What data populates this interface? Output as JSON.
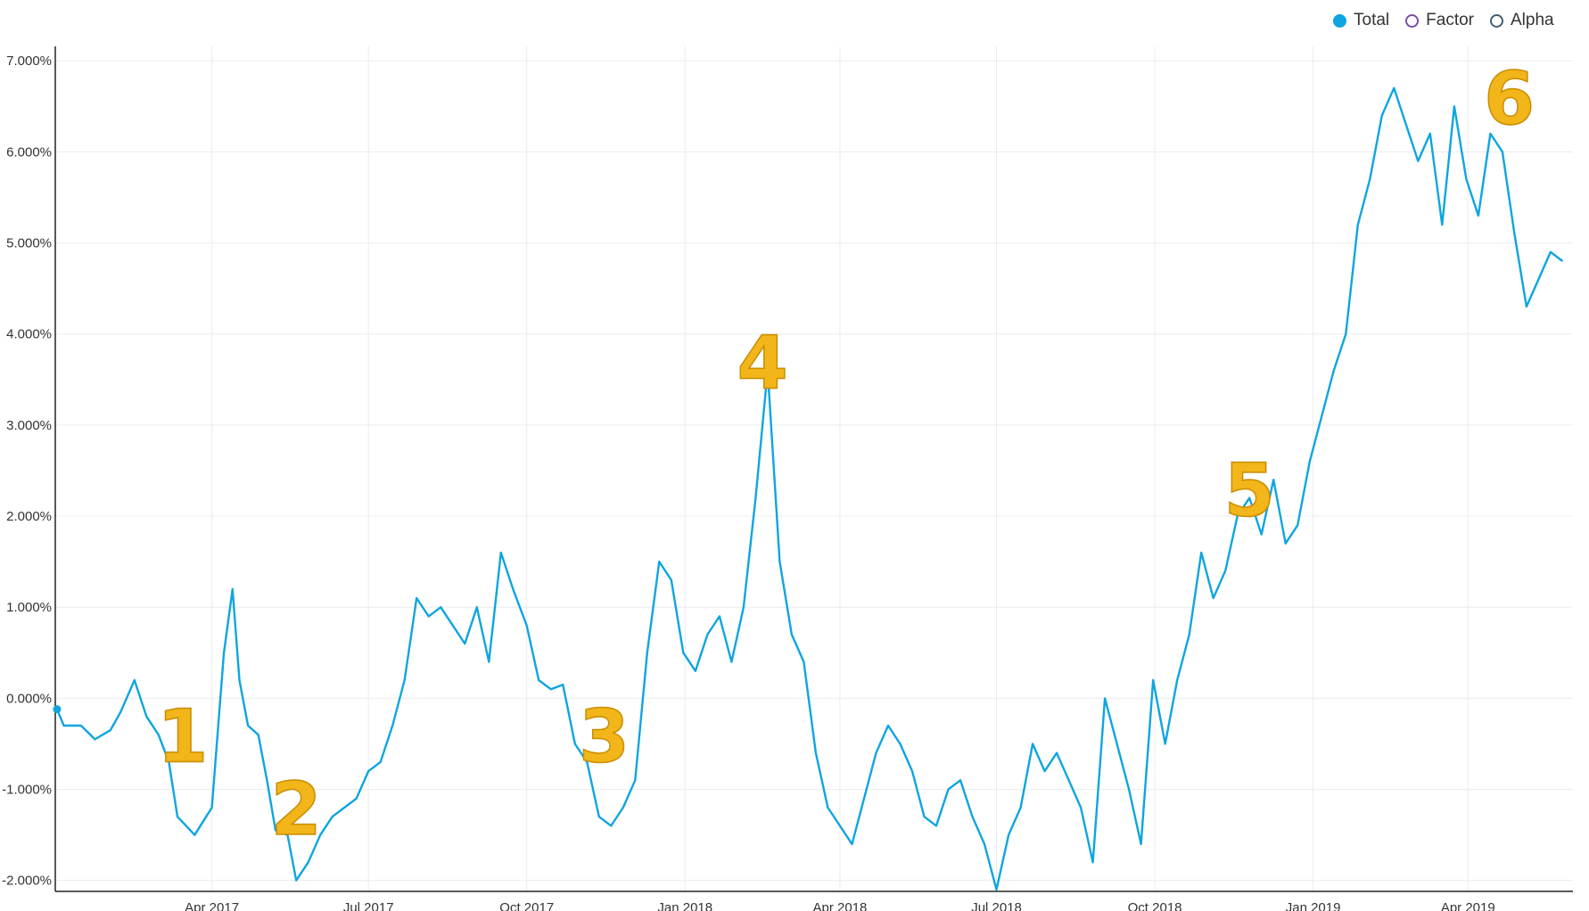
{
  "legend": {
    "items": [
      {
        "label": "Total",
        "color": "#0EA5E0",
        "filled": true
      },
      {
        "label": "Factor",
        "color": "#7B4FA6",
        "filled": false
      },
      {
        "label": "Alpha",
        "color": "#3F5E77",
        "filled": false
      }
    ]
  },
  "chart_data": {
    "type": "line",
    "title": "",
    "xlabel": "",
    "ylabel": "",
    "ylim": [
      -2.0,
      7.0
    ],
    "x_ticks": [
      "Apr 2017",
      "Jul 2017",
      "Oct 2017",
      "Jan 2018",
      "Apr 2018",
      "Jul 2018",
      "Oct 2018",
      "Jan 2019",
      "Apr 2019"
    ],
    "y_ticks": [
      "-2.000%",
      "-1.000%",
      "0.000%",
      "1.000%",
      "2.000%",
      "3.000%",
      "4.000%",
      "5.000%",
      "6.000%",
      "7.000%"
    ],
    "grid": true,
    "legend_position": "top-right",
    "annotations": [
      {
        "text": "1",
        "x": "2017-03-15",
        "y": -0.4
      },
      {
        "text": "2",
        "x": "2017-05-20",
        "y": -1.2
      },
      {
        "text": "3",
        "x": "2017-11-15",
        "y": -0.4
      },
      {
        "text": "4",
        "x": "2018-02-15",
        "y": 3.7
      },
      {
        "text": "5",
        "x": "2018-11-25",
        "y": 2.3
      },
      {
        "text": "6",
        "x": "2019-04-25",
        "y": 6.6
      }
    ],
    "series": [
      {
        "name": "Total",
        "color": "#0EA5E0",
        "x": [
          "2017-01-01",
          "2017-01-05",
          "2017-01-15",
          "2017-01-23",
          "2017-02-01",
          "2017-02-07",
          "2017-02-15",
          "2017-02-22",
          "2017-03-01",
          "2017-03-07",
          "2017-03-12",
          "2017-03-17",
          "2017-03-22",
          "2017-03-27",
          "2017-04-01",
          "2017-04-08",
          "2017-04-13",
          "2017-04-17",
          "2017-04-22",
          "2017-04-28",
          "2017-05-03",
          "2017-05-08",
          "2017-05-15",
          "2017-05-20",
          "2017-05-27",
          "2017-06-03",
          "2017-06-10",
          "2017-06-17",
          "2017-06-24",
          "2017-07-01",
          "2017-07-08",
          "2017-07-15",
          "2017-07-22",
          "2017-07-29",
          "2017-08-05",
          "2017-08-12",
          "2017-08-19",
          "2017-08-26",
          "2017-09-02",
          "2017-09-09",
          "2017-09-16",
          "2017-09-23",
          "2017-10-01",
          "2017-10-08",
          "2017-10-15",
          "2017-10-22",
          "2017-10-29",
          "2017-11-05",
          "2017-11-12",
          "2017-11-19",
          "2017-11-26",
          "2017-12-03",
          "2017-12-10",
          "2017-12-17",
          "2017-12-24",
          "2017-12-31",
          "2018-01-07",
          "2018-01-14",
          "2018-01-21",
          "2018-01-28",
          "2018-02-04",
          "2018-02-11",
          "2018-02-18",
          "2018-02-25",
          "2018-03-04",
          "2018-03-11",
          "2018-03-18",
          "2018-03-25",
          "2018-04-01",
          "2018-04-08",
          "2018-04-15",
          "2018-04-22",
          "2018-04-29",
          "2018-05-06",
          "2018-05-13",
          "2018-05-20",
          "2018-05-27",
          "2018-06-03",
          "2018-06-10",
          "2018-06-17",
          "2018-06-24",
          "2018-07-01",
          "2018-07-08",
          "2018-07-15",
          "2018-07-22",
          "2018-07-29",
          "2018-08-05",
          "2018-08-12",
          "2018-08-19",
          "2018-08-26",
          "2018-09-02",
          "2018-09-09",
          "2018-09-16",
          "2018-09-23",
          "2018-09-30",
          "2018-10-07",
          "2018-10-14",
          "2018-10-21",
          "2018-10-28",
          "2018-11-04",
          "2018-11-11",
          "2018-11-18",
          "2018-11-25",
          "2018-12-02",
          "2018-12-09",
          "2018-12-16",
          "2018-12-23",
          "2018-12-30",
          "2019-01-06",
          "2019-01-13",
          "2019-01-20",
          "2019-01-27",
          "2019-02-03",
          "2019-02-10",
          "2019-02-17",
          "2019-02-24",
          "2019-03-03",
          "2019-03-10",
          "2019-03-17",
          "2019-03-24",
          "2019-03-31",
          "2019-04-07",
          "2019-04-14",
          "2019-04-21",
          "2019-04-28",
          "2019-05-05",
          "2019-05-12",
          "2019-05-19",
          "2019-05-26"
        ],
        "y": [
          -0.12,
          -0.3,
          -0.3,
          -0.45,
          -0.35,
          -0.15,
          0.2,
          -0.2,
          -0.4,
          -0.7,
          -1.3,
          -1.4,
          -1.5,
          -1.35,
          -1.2,
          0.5,
          1.2,
          0.2,
          -0.3,
          -0.4,
          -0.9,
          -1.45,
          -1.5,
          -2.0,
          -1.8,
          -1.5,
          -1.3,
          -1.2,
          -1.1,
          -0.8,
          -0.7,
          -0.3,
          0.2,
          1.1,
          0.9,
          1.0,
          0.8,
          0.6,
          1.0,
          0.4,
          1.6,
          1.2,
          0.8,
          0.2,
          0.1,
          0.15,
          -0.5,
          -0.7,
          -1.3,
          -1.4,
          -1.2,
          -0.9,
          0.5,
          1.5,
          1.3,
          0.5,
          0.3,
          0.7,
          0.9,
          0.4,
          1.0,
          2.2,
          3.6,
          1.5,
          0.7,
          0.4,
          -0.6,
          -1.2,
          -1.4,
          -1.6,
          -1.1,
          -0.6,
          -0.3,
          -0.5,
          -0.8,
          -1.3,
          -1.4,
          -1.0,
          -0.9,
          -1.3,
          -1.6,
          -2.1,
          -1.5,
          -1.2,
          -0.5,
          -0.8,
          -0.6,
          -0.9,
          -1.2,
          -1.8,
          0.0,
          -0.5,
          -1.0,
          -1.6,
          0.2,
          -0.5,
          0.2,
          0.7,
          1.6,
          1.1,
          1.4,
          2.0,
          2.2,
          1.8,
          2.4,
          1.7,
          1.9,
          2.6,
          3.1,
          3.6,
          4.0,
          5.2,
          5.7,
          6.4,
          6.7,
          6.3,
          5.9,
          6.2,
          5.2,
          6.5,
          5.7,
          5.3,
          6.2,
          6.0,
          5.1,
          4.3,
          4.6,
          4.9,
          4.8
        ]
      }
    ]
  }
}
